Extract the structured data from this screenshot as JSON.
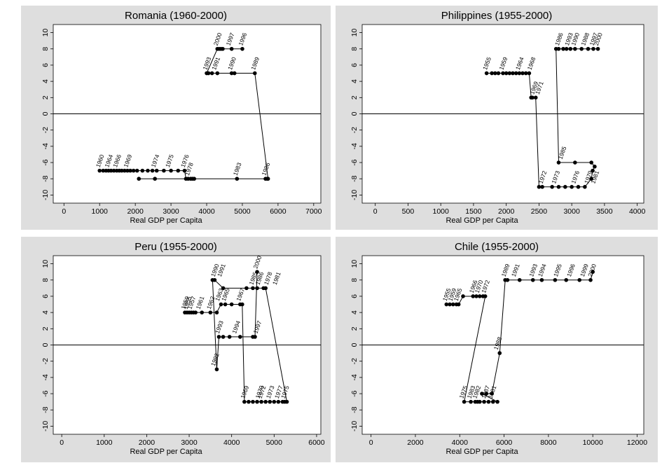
{
  "chart_data": [
    {
      "type": "line",
      "title": "Romania (1960-2000)",
      "xlabel": "Real GDP per Capita",
      "ylabel": "",
      "xlim": [
        -300,
        7200
      ],
      "ylim": [
        -11,
        11
      ],
      "xticks": [
        0,
        1000,
        2000,
        3000,
        4000,
        5000,
        6000,
        7000
      ],
      "yticks": [
        -10,
        -8,
        -6,
        -4,
        -2,
        0,
        2,
        4,
        6,
        8,
        10
      ],
      "x": [
        1000,
        1100,
        1180,
        1250,
        1320,
        1400,
        1480,
        1550,
        1620,
        1700,
        1780,
        1860,
        1950,
        2050,
        2200,
        2350,
        2480,
        2600,
        2800,
        3000,
        3200,
        3380,
        3420,
        3480,
        3550,
        3600,
        3650,
        2100,
        2550,
        4850,
        5650,
        5700,
        5720,
        5350,
        4780,
        4700,
        4300,
        4150,
        4050,
        4000,
        4300,
        4350,
        4400,
        4450,
        4700,
        5000
      ],
      "y": [
        -7,
        -7,
        -7,
        -7,
        -7,
        -7,
        -7,
        -7,
        -7,
        -7,
        -7,
        -7,
        -7,
        -7,
        -7,
        -7,
        -7,
        -7,
        -7,
        -7,
        -7,
        -7,
        -8,
        -8,
        -8,
        -8,
        -8,
        -8,
        -8,
        -8,
        -8,
        -8,
        -8,
        5,
        5,
        5,
        5,
        5,
        5,
        5,
        8,
        8,
        8,
        8,
        8,
        8
      ],
      "point_labels": [
        {
          "text": "1960",
          "x": 1000,
          "y": -7
        },
        {
          "text": "1964",
          "x": 1250,
          "y": -7
        },
        {
          "text": "1966",
          "x": 1480,
          "y": -7
        },
        {
          "text": "1969",
          "x": 1780,
          "y": -7
        },
        {
          "text": "1974",
          "x": 2550,
          "y": -7
        },
        {
          "text": "1975",
          "x": 2950,
          "y": -7
        },
        {
          "text": "1976",
          "x": 3380,
          "y": -7
        },
        {
          "text": "1978",
          "x": 3500,
          "y": -8
        },
        {
          "text": "1983",
          "x": 4850,
          "y": -8
        },
        {
          "text": "1986",
          "x": 5650,
          "y": -8
        },
        {
          "text": "1993",
          "x": 4000,
          "y": 5
        },
        {
          "text": "1991",
          "x": 4250,
          "y": 5
        },
        {
          "text": "1990",
          "x": 4700,
          "y": 5
        },
        {
          "text": "1989",
          "x": 5350,
          "y": 5
        },
        {
          "text": "2000",
          "x": 4300,
          "y": 8
        },
        {
          "text": "1997",
          "x": 4650,
          "y": 8
        },
        {
          "text": "1996",
          "x": 5000,
          "y": 8
        }
      ]
    },
    {
      "type": "line",
      "title": "Philippines (1955-2000)",
      "xlabel": "Real GDP per Capita",
      "ylabel": "",
      "xlim": [
        -200,
        4100
      ],
      "ylim": [
        -11,
        11
      ],
      "xticks": [
        0,
        500,
        1000,
        1500,
        2000,
        2500,
        3000,
        3500,
        4000
      ],
      "yticks": [
        -10,
        -8,
        -6,
        -4,
        -2,
        0,
        2,
        4,
        6,
        8,
        10
      ],
      "x": [
        1700,
        1780,
        1830,
        1880,
        1950,
        2000,
        2050,
        2100,
        2150,
        2200,
        2250,
        2300,
        2350,
        2380,
        2400,
        2450,
        2500,
        2550,
        2700,
        2800,
        2900,
        3000,
        3100,
        3200,
        3300,
        3320,
        3350,
        3300,
        3050,
        2800,
        2760,
        2800,
        2870,
        2920,
        2980,
        3050,
        3150,
        3250,
        3330,
        3400
      ],
      "y": [
        5,
        5,
        5,
        5,
        5,
        5,
        5,
        5,
        5,
        5,
        5,
        5,
        5,
        2,
        2,
        2,
        -9,
        -9,
        -9,
        -9,
        -9,
        -9,
        -9,
        -9,
        -8,
        -7,
        -6.5,
        -6,
        -6,
        -6,
        8,
        8,
        8,
        8,
        8,
        8,
        8,
        8,
        8,
        8
      ],
      "point_labels": [
        {
          "text": "1955",
          "x": 1700,
          "y": 5
        },
        {
          "text": "1959",
          "x": 1950,
          "y": 5
        },
        {
          "text": "1964",
          "x": 2200,
          "y": 5
        },
        {
          "text": "1968",
          "x": 2380,
          "y": 5
        },
        {
          "text": "1969",
          "x": 2420,
          "y": 2
        },
        {
          "text": "1971",
          "x": 2500,
          "y": 2
        },
        {
          "text": "1972",
          "x": 2550,
          "y": -9
        },
        {
          "text": "1973",
          "x": 2750,
          "y": -9
        },
        {
          "text": "1976",
          "x": 3050,
          "y": -9
        },
        {
          "text": "1979",
          "x": 3250,
          "y": -9
        },
        {
          "text": "1981",
          "x": 3350,
          "y": -9
        },
        {
          "text": "1985",
          "x": 2850,
          "y": -6
        },
        {
          "text": "1986",
          "x": 2800,
          "y": 8
        },
        {
          "text": "1993",
          "x": 2950,
          "y": 8
        },
        {
          "text": "1990",
          "x": 3050,
          "y": 8
        },
        {
          "text": "1988",
          "x": 3200,
          "y": 8
        },
        {
          "text": "1997",
          "x": 3330,
          "y": 8
        },
        {
          "text": "2000",
          "x": 3400,
          "y": 8
        }
      ]
    },
    {
      "type": "line",
      "title": "Peru (1955-2000)",
      "xlabel": "Real GDP per Capita",
      "ylabel": "",
      "xlim": [
        -200,
        6100
      ],
      "ylim": [
        -11,
        11
      ],
      "xticks": [
        0,
        1000,
        2000,
        3000,
        4000,
        5000,
        6000
      ],
      "yticks": [
        -10,
        -8,
        -6,
        -4,
        -2,
        0,
        2,
        4,
        6,
        8,
        10
      ],
      "x": [
        2900,
        2950,
        3000,
        3050,
        3100,
        3150,
        3300,
        3500,
        3650,
        3750,
        3850,
        4000,
        4200,
        4250,
        4300,
        4400,
        4500,
        4600,
        4700,
        4800,
        4900,
        5000,
        5100,
        5200,
        5250,
        5300,
        4800,
        4750,
        4600,
        4500,
        4350,
        3800,
        3600,
        3550,
        3650,
        3700,
        3800,
        3950,
        4200,
        4500,
        4550,
        4600
      ],
      "y": [
        4,
        4,
        4,
        4,
        4,
        4,
        4,
        4,
        4,
        5,
        5,
        5,
        5,
        5,
        -7,
        -7,
        -7,
        -7,
        -7,
        -7,
        -7,
        -7,
        -7,
        -7,
        -7,
        -7,
        7,
        7,
        7,
        7,
        7,
        7,
        8,
        8,
        -3,
        1,
        1,
        1,
        1,
        1,
        1,
        9
      ],
      "point_labels": [
        {
          "text": "1959",
          "x": 2900,
          "y": 4
        },
        {
          "text": "1955",
          "x": 2950,
          "y": 4
        },
        {
          "text": "1957",
          "x": 3050,
          "y": 4
        },
        {
          "text": "1961",
          "x": 3250,
          "y": 4
        },
        {
          "text": "1962",
          "x": 3500,
          "y": 4
        },
        {
          "text": "1963",
          "x": 3700,
          "y": 5
        },
        {
          "text": "1965",
          "x": 3850,
          "y": 5
        },
        {
          "text": "1967",
          "x": 4200,
          "y": 5
        },
        {
          "text": "1990",
          "x": 3600,
          "y": 8
        },
        {
          "text": "1991",
          "x": 3750,
          "y": 8
        },
        {
          "text": "1985",
          "x": 4500,
          "y": 7
        },
        {
          "text": "1986",
          "x": 4650,
          "y": 7
        },
        {
          "text": "2000",
          "x": 4600,
          "y": 9
        },
        {
          "text": "1978",
          "x": 4850,
          "y": 7
        },
        {
          "text": "1981",
          "x": 5050,
          "y": 7
        },
        {
          "text": "1993",
          "x": 3700,
          "y": 1
        },
        {
          "text": "1994",
          "x": 4100,
          "y": 1
        },
        {
          "text": "1997",
          "x": 4600,
          "y": 1
        },
        {
          "text": "1992",
          "x": 3600,
          "y": -3
        },
        {
          "text": "1969",
          "x": 4300,
          "y": -7
        },
        {
          "text": "1970",
          "x": 4650,
          "y": -7
        },
        {
          "text": "1972",
          "x": 4700,
          "y": -7
        },
        {
          "text": "1973",
          "x": 4900,
          "y": -7
        },
        {
          "text": "1977",
          "x": 5100,
          "y": -7
        },
        {
          "text": "1975",
          "x": 5250,
          "y": -7
        }
      ]
    },
    {
      "type": "line",
      "title": "Chile (1955-2000)",
      "xlabel": "Real GDP per Capita",
      "ylabel": "",
      "xlim": [
        -400,
        12300
      ],
      "ylim": [
        -11,
        11
      ],
      "xticks": [
        0,
        2000,
        4000,
        6000,
        8000,
        10000,
        12000
      ],
      "yticks": [
        -10,
        -8,
        -6,
        -4,
        -2,
        0,
        2,
        4,
        6,
        8,
        10
      ],
      "x": [
        3400,
        3550,
        3700,
        3850,
        3950,
        4150,
        4600,
        4750,
        4900,
        5050,
        5150,
        4200,
        4500,
        4700,
        4800,
        4900,
        5100,
        5300,
        5500,
        5700,
        5000,
        5200,
        5450,
        5800,
        6050,
        6150,
        6700,
        7300,
        7700,
        8300,
        8800,
        9400,
        9900,
        10000
      ],
      "y": [
        5,
        5,
        5,
        5,
        5,
        6,
        6,
        6,
        6,
        6,
        6,
        -7,
        -7,
        -7,
        -7,
        -7,
        -7,
        -7,
        -7,
        -7,
        -6,
        -6,
        -6,
        -1,
        8,
        8,
        8,
        8,
        8,
        8,
        8,
        8,
        8,
        9
      ],
      "point_labels": [
        {
          "text": "1955",
          "x": 3400,
          "y": 5
        },
        {
          "text": "1959",
          "x": 3650,
          "y": 5
        },
        {
          "text": "1965",
          "x": 3900,
          "y": 5
        },
        {
          "text": "1966",
          "x": 4600,
          "y": 6
        },
        {
          "text": "1970",
          "x": 4850,
          "y": 6
        },
        {
          "text": "1972",
          "x": 5150,
          "y": 6
        },
        {
          "text": "1975",
          "x": 4150,
          "y": -7
        },
        {
          "text": "1983",
          "x": 4500,
          "y": -7
        },
        {
          "text": "1982",
          "x": 4750,
          "y": -7
        },
        {
          "text": "1987",
          "x": 5150,
          "y": -7
        },
        {
          "text": "1981",
          "x": 5450,
          "y": -7
        },
        {
          "text": "1988",
          "x": 5700,
          "y": -1
        },
        {
          "text": "1989",
          "x": 6050,
          "y": 8
        },
        {
          "text": "1991",
          "x": 6500,
          "y": 8
        },
        {
          "text": "1993",
          "x": 7300,
          "y": 8
        },
        {
          "text": "1994",
          "x": 7700,
          "y": 8
        },
        {
          "text": "1995",
          "x": 8400,
          "y": 8
        },
        {
          "text": "1996",
          "x": 9000,
          "y": 8
        },
        {
          "text": "1999",
          "x": 9600,
          "y": 8
        },
        {
          "text": "2000",
          "x": 9950,
          "y": 8
        }
      ]
    }
  ]
}
